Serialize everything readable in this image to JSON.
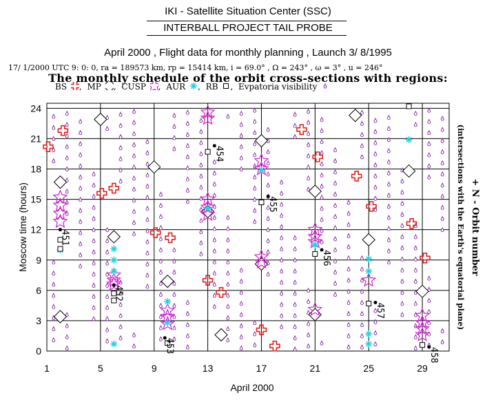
{
  "header": {
    "org": "IKI - Satellite Situation Center (SSC)",
    "project": "INTERBALL PROJECT TAIL PROBE",
    "subtitle": "April 2000 ,  Flight data for monthly planning ,   Launch  3/ 8/1995",
    "orbit_params": "17/ 1/2000 UTC  9: 0: 0, ra =  189573 km, rp =  15414 km, i = 69.0° , Ω = 243° , ω =   3° , u = 246°",
    "schedule_title": "The monthly schedule of the orbit cross-sections with regions:"
  },
  "legend": [
    {
      "label": "BS",
      "symbol": "cross",
      "color": "#e02020"
    },
    {
      "label": "MP",
      "symbol": "diamond",
      "color": "#000000"
    },
    {
      "label": "CUSP",
      "symbol": "star",
      "color": "#d020d0"
    },
    {
      "label": "AUR",
      "symbol": "asterisk",
      "color": "#20d0e0"
    },
    {
      "label": "RB",
      "symbol": "square",
      "color": "#000000"
    },
    {
      "label": "Evpatoria visibility",
      "symbol": "drop",
      "color": "#8020a0"
    }
  ],
  "chart_data": {
    "type": "scatter",
    "xlabel": "April 2000",
    "ylabel": "Moscow time (hours)",
    "right_label": "+ N - Orbit number",
    "right_sublabel": "(intersections with the Earth's equatorial plane)",
    "xlim": [
      1,
      31
    ],
    "ylim": [
      0,
      24.5
    ],
    "xticks": [
      1,
      5,
      9,
      13,
      17,
      21,
      25,
      29
    ],
    "yticks": [
      0,
      3,
      6,
      9,
      12,
      15,
      18,
      21,
      24
    ],
    "grid": true,
    "orbits": [
      {
        "n": "451",
        "x": 2.0,
        "y": 12.0
      },
      {
        "n": "452",
        "x": 6.0,
        "y": 6.5
      },
      {
        "n": "453",
        "x": 9.8,
        "y": 1.3
      },
      {
        "n": "454",
        "x": 13.5,
        "y": 20.3
      },
      {
        "n": "455",
        "x": 17.5,
        "y": 15.3
      },
      {
        "n": "456",
        "x": 21.5,
        "y": 10.0
      },
      {
        "n": "457",
        "x": 25.5,
        "y": 4.8
      },
      {
        "n": "458",
        "x": 29.5,
        "y": 0.4
      }
    ],
    "series": [
      {
        "name": "BS",
        "symbol": "cross",
        "color": "#e02020",
        "points": [
          [
            1.1,
            20.2
          ],
          [
            2.2,
            21.8
          ],
          [
            5.1,
            15.6
          ],
          [
            6.0,
            16.1
          ],
          [
            9.1,
            11.7
          ],
          [
            10.2,
            11.2
          ],
          [
            13.0,
            7.0
          ],
          [
            14.0,
            5.8
          ],
          [
            17.0,
            2.1
          ],
          [
            18.0,
            0.5
          ],
          [
            20.0,
            21.9
          ],
          [
            21.2,
            19.2
          ],
          [
            24.1,
            17.3
          ],
          [
            25.2,
            14.3
          ],
          [
            28.2,
            12.6
          ],
          [
            29.2,
            9.2
          ]
        ]
      },
      {
        "name": "MP",
        "symbol": "diamond",
        "color": "#000000",
        "points": [
          [
            2.0,
            16.7
          ],
          [
            2.0,
            3.4
          ],
          [
            5.0,
            22.9
          ],
          [
            6.0,
            11.3
          ],
          [
            9.0,
            18.2
          ],
          [
            10.0,
            6.9
          ],
          [
            13.0,
            13.8
          ],
          [
            14.0,
            1.6
          ],
          [
            17.0,
            20.8
          ],
          [
            17.0,
            8.6
          ],
          [
            21.0,
            15.8
          ],
          [
            21.0,
            3.6
          ],
          [
            24.0,
            23.3
          ],
          [
            25.0,
            11.0
          ],
          [
            28.0,
            17.8
          ],
          [
            29.0,
            5.9
          ]
        ]
      },
      {
        "name": "CUSP",
        "symbol": "star",
        "color": "#d020d0",
        "points": [
          [
            2.0,
            15.2
          ],
          [
            2.0,
            14.4
          ],
          [
            2.0,
            13.6
          ],
          [
            2.0,
            12.8
          ],
          [
            6.0,
            7.5
          ],
          [
            6.0,
            7.0
          ],
          [
            6.0,
            6.6
          ],
          [
            10.0,
            4.0
          ],
          [
            10.0,
            3.4
          ],
          [
            10.0,
            2.7
          ],
          [
            13.0,
            23.6
          ],
          [
            13.0,
            23.0
          ],
          [
            13.0,
            15.0
          ],
          [
            13.0,
            14.2
          ],
          [
            13.0,
            13.5
          ],
          [
            17.0,
            18.8
          ],
          [
            17.0,
            18.0
          ],
          [
            17.0,
            9.3
          ],
          [
            17.0,
            8.8
          ],
          [
            21.0,
            12.0
          ],
          [
            21.0,
            11.3
          ],
          [
            21.0,
            10.8
          ],
          [
            21.0,
            4.1
          ],
          [
            25.0,
            7.0
          ],
          [
            29.0,
            3.5
          ],
          [
            29.0,
            2.8
          ],
          [
            29.0,
            2.2
          ],
          [
            29.0,
            1.6
          ]
        ]
      },
      {
        "name": "AUR",
        "symbol": "asterisk",
        "color": "#20d0e0",
        "points": [
          [
            2.0,
            10.0
          ],
          [
            6.0,
            10.1
          ],
          [
            6.0,
            9.0
          ],
          [
            6.0,
            7.9
          ],
          [
            6.0,
            0.7
          ],
          [
            10.0,
            4.9
          ],
          [
            10.0,
            2.8
          ],
          [
            13.0,
            14.1
          ],
          [
            17.0,
            17.9
          ],
          [
            21.0,
            10.5
          ],
          [
            25.0,
            9.1
          ],
          [
            25.0,
            7.9
          ],
          [
            25.0,
            1.7
          ],
          [
            25.0,
            0.7
          ],
          [
            28.0,
            20.9
          ]
        ]
      },
      {
        "name": "RB",
        "symbol": "square",
        "color": "#000000",
        "points": [
          [
            2.0,
            11.0
          ],
          [
            2.0,
            10.1
          ],
          [
            6.0,
            5.7
          ],
          [
            6.0,
            5.0
          ],
          [
            10.0,
            0.8
          ],
          [
            13.0,
            19.7
          ],
          [
            17.0,
            14.7
          ],
          [
            21.0,
            9.6
          ],
          [
            25.0,
            4.7
          ],
          [
            28.0,
            24.2
          ],
          [
            29.0,
            0.6
          ]
        ]
      }
    ],
    "visibility": {
      "name": "Evpatoria visibility",
      "symbol": "drop",
      "color": "#8020a0",
      "note": "dense vertical columns of visibility marks, one column per day"
    }
  }
}
